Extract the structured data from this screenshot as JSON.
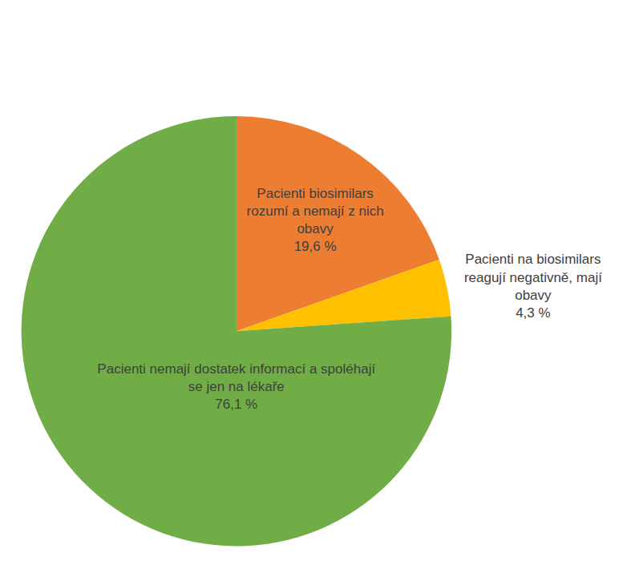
{
  "chart_data": {
    "type": "pie",
    "categories": [
      "Pacienti biosimilars rozumí a nemají z nich obavy",
      "Pacienti na biosimilars reagují negativně, mají obavy",
      "Pacienti nemají dostatek informací a spoléhají se jen na lékaře"
    ],
    "values": [
      19.6,
      4.3,
      76.1
    ],
    "value_labels": [
      "19,6 %",
      "4,3 %",
      "76,1 %"
    ],
    "colors": [
      "#ED7D31",
      "#FFC000",
      "#70AD47"
    ],
    "data_labels": true
  }
}
